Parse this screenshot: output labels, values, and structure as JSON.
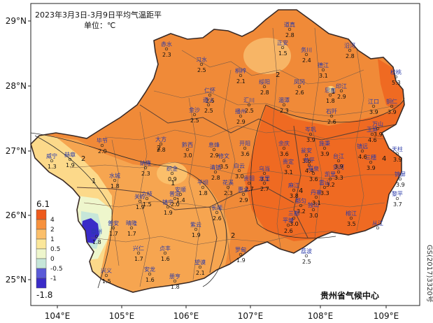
{
  "header": {
    "title": "2023年3月3日-3月9日平均气温距平",
    "unit": "单位：℃"
  },
  "producer": "贵州省气候中心",
  "map_code": "GS(2017)3320号",
  "axes": {
    "y_ticks": [
      "29°N",
      "28°N",
      "27°N",
      "26°N",
      "25°N"
    ],
    "x_ticks": [
      "104°E",
      "105°E",
      "106°E",
      "107°E",
      "108°E",
      "109°E"
    ]
  },
  "legend": {
    "max_label": "6.1",
    "min_label": "-1.8",
    "bands": [
      {
        "label": "4",
        "color": "#ee5a1c"
      },
      {
        "label": "2",
        "color": "#f7913c"
      },
      {
        "label": "1",
        "color": "#fbbf6a"
      },
      {
        "label": "0.5",
        "color": "#fbe79a"
      },
      {
        "label": "0",
        "color": "#eef6cc"
      },
      {
        "label": "-0.5",
        "color": "#c6e6d9"
      },
      {
        "label": "-1",
        "color": "#5a5ad8"
      }
    ],
    "lowest_color": "#3a2bc8"
  },
  "contour_labels": [
    "2",
    "2",
    "2",
    "1",
    "1",
    "1",
    "2",
    "4",
    "4"
  ],
  "stations": [
    {
      "name": "道真",
      "value": "2.8"
    },
    {
      "name": "正安",
      "value": "1.5"
    },
    {
      "name": "务川",
      "value": "2.4"
    },
    {
      "name": "沿河",
      "value": "2.8"
    },
    {
      "name": "赤水",
      "value": "2.3"
    },
    {
      "name": "习水",
      "value": "2.5"
    },
    {
      "name": "德江",
      "value": "3.1"
    },
    {
      "name": "桐梓",
      "value": "2.1"
    },
    {
      "name": "绥阳",
      "value": "2.8"
    },
    {
      "name": "凤冈",
      "value": "2.6"
    },
    {
      "name": "印江",
      "value": "2.9"
    },
    {
      "name": "松桃",
      "value": "5.3"
    },
    {
      "name": "思南",
      "value": "1.8"
    },
    {
      "name": "仁怀",
      "value": "2.5"
    },
    {
      "name": "遵义",
      "value": "2.5"
    },
    {
      "name": "湄潭",
      "value": "2.3"
    },
    {
      "name": "江口",
      "value": "3.9"
    },
    {
      "name": "铜仁",
      "value": "3.9"
    },
    {
      "name": "汇川",
      "value": "2.5"
    },
    {
      "name": "石阡",
      "value": "2.6"
    },
    {
      "name": "金沙",
      "value": "2.5"
    },
    {
      "name": "播州",
      "value": "2.9"
    },
    {
      "name": "毕节",
      "value": "2.0"
    },
    {
      "name": "大方",
      "value": "2.8"
    },
    {
      "name": "黔西",
      "value": "3.0"
    },
    {
      "name": "息烽",
      "value": "2.9"
    },
    {
      "name": "开阳",
      "value": "3.6"
    },
    {
      "name": "余庆",
      "value": "3.6"
    },
    {
      "name": "施秉",
      "value": "3.9"
    },
    {
      "name": "镇远",
      "value": "4.6"
    },
    {
      "name": "岑巩",
      "value": "3.9"
    },
    {
      "name": "玉屏",
      "value": "4.6"
    },
    {
      "name": "万山",
      "value": "3.9"
    },
    {
      "name": "赫章",
      "value": "1.9"
    },
    {
      "name": "纳雍",
      "value": "2.3"
    },
    {
      "name": "织金",
      "value": "0.9"
    },
    {
      "name": "修文",
      "value": "3.5"
    },
    {
      "name": "清镇",
      "value": "2.8"
    },
    {
      "name": "白云",
      "value": "3.0"
    },
    {
      "name": "乌当",
      "value": "3.1"
    },
    {
      "name": "瓮安",
      "value": "3.6"
    },
    {
      "name": "黄平",
      "value": "4.4"
    },
    {
      "name": "剑河",
      "value": "3.3"
    },
    {
      "name": "三穗",
      "value": "3.9"
    },
    {
      "name": "天柱",
      "value": "3.9"
    },
    {
      "name": "台江",
      "value": "3.9"
    },
    {
      "name": "威宁",
      "value": "1.3"
    },
    {
      "name": "水城",
      "value": "1.8"
    },
    {
      "name": "六枝",
      "value": "1.5"
    },
    {
      "name": "普定",
      "value": "2.0"
    },
    {
      "name": "安顺",
      "value": "1.4"
    },
    {
      "name": "平坝",
      "value": "1.8"
    },
    {
      "name": "花溪",
      "value": "2.3"
    },
    {
      "name": "贵阳",
      "value": "2.7"
    },
    {
      "name": "龙里",
      "value": "2.7"
    },
    {
      "name": "贵定",
      "value": "3.1"
    },
    {
      "name": "福泉",
      "value": "3.6"
    },
    {
      "name": "凯里",
      "value": "3.2"
    },
    {
      "name": "麻江",
      "value": "3.8"
    },
    {
      "name": "丹寨",
      "value": "3.1"
    },
    {
      "name": "雷山",
      "value": "3.3"
    },
    {
      "name": "锦屏",
      "value": "3.9"
    },
    {
      "name": "都匀",
      "value": "3.2"
    },
    {
      "name": "盘州",
      "value": "1.8"
    },
    {
      "name": "普安",
      "value": "1.7"
    },
    {
      "name": "晴隆",
      "value": "1.7"
    },
    {
      "name": "关岭",
      "value": "1.9"
    },
    {
      "name": "镇宁",
      "value": "1.9"
    },
    {
      "name": "长顺",
      "value": "2.6"
    },
    {
      "name": "惠水",
      "value": "2.9"
    },
    {
      "name": "紫云",
      "value": "1.9"
    },
    {
      "name": "黎平",
      "value": "3.7"
    },
    {
      "name": "兴仁",
      "value": "1.7"
    },
    {
      "name": "贞丰",
      "value": "1.6"
    },
    {
      "name": "平塘",
      "value": "2.6"
    },
    {
      "name": "独山",
      "value": "3.0"
    },
    {
      "name": "三都",
      "value": "3.0"
    },
    {
      "name": "榕江",
      "value": "3.5"
    },
    {
      "name": "从江",
      "value": ""
    },
    {
      "name": "兴义",
      "value": "1.5"
    },
    {
      "name": "安龙",
      "value": "1.6"
    },
    {
      "name": "望谟",
      "value": "2.1"
    },
    {
      "name": "册亨",
      "value": "1.8"
    },
    {
      "name": "罗甸",
      "value": "1.9"
    },
    {
      "name": "荔波",
      "value": "2.5"
    }
  ]
}
